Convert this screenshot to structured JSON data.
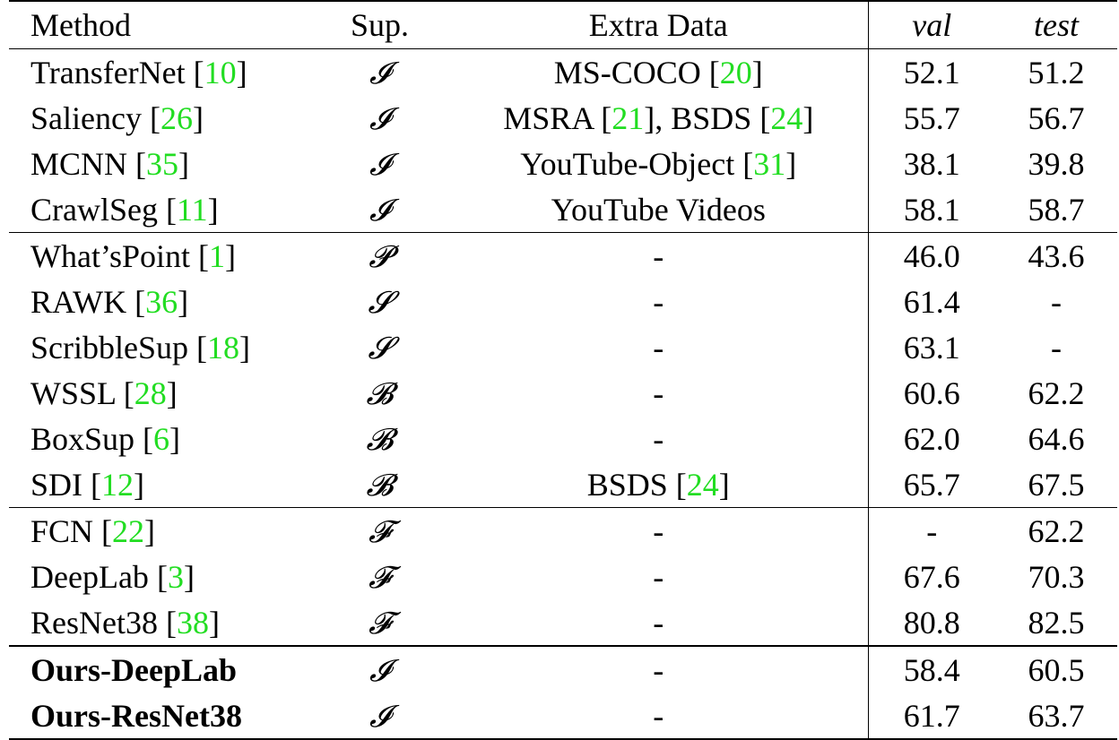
{
  "header": {
    "method": "Method",
    "sup": "Sup.",
    "extra": "Extra Data",
    "val": "val",
    "test": "test"
  },
  "groups": [
    {
      "rows": [
        {
          "method": "TransferNet",
          "ref": "10",
          "sup": "𝓘",
          "extra": "MS-COCO",
          "extra_refs": [
            "20"
          ],
          "val": "52.1",
          "test": "51.2"
        },
        {
          "method": "Saliency",
          "ref": "26",
          "sup": "𝓘",
          "extra": "MSRA",
          "extra_refs": [
            "21",
            "24"
          ],
          "extra2": "BSDS",
          "val": "55.7",
          "test": "56.7"
        },
        {
          "method": "MCNN",
          "ref": "35",
          "sup": "𝓘",
          "extra": "YouTube-Object",
          "extra_refs": [
            "31"
          ],
          "val": "38.1",
          "test": "39.8"
        },
        {
          "method": "CrawlSeg",
          "ref": "11",
          "sup": "𝓘",
          "extra": "YouTube Videos",
          "extra_refs": [],
          "val": "58.1",
          "test": "58.7"
        }
      ]
    },
    {
      "rows": [
        {
          "method": "What’sPoint",
          "ref": "1",
          "sup": "𝓟",
          "extra": "-",
          "extra_refs": [],
          "val": "46.0",
          "test": "43.6"
        },
        {
          "method": "RAWK",
          "ref": "36",
          "sup": "𝓢",
          "extra": "-",
          "extra_refs": [],
          "val": "61.4",
          "test": "-"
        },
        {
          "method": "ScribbleSup",
          "ref": "18",
          "sup": "𝓢",
          "extra": "-",
          "extra_refs": [],
          "val": "63.1",
          "test": "-"
        },
        {
          "method": "WSSL",
          "ref": "28",
          "sup": "𝓑",
          "extra": "-",
          "extra_refs": [],
          "val": "60.6",
          "test": "62.2"
        },
        {
          "method": "BoxSup",
          "ref": "6",
          "sup": "𝓑",
          "extra": "-",
          "extra_refs": [],
          "val": "62.0",
          "test": "64.6"
        },
        {
          "method": "SDI",
          "ref": "12",
          "sup": "𝓑",
          "extra": "BSDS",
          "extra_refs": [
            "24"
          ],
          "val": "65.7",
          "test": "67.5"
        }
      ]
    },
    {
      "rows": [
        {
          "method": "FCN",
          "ref": "22",
          "sup": "𝓕",
          "extra": "-",
          "extra_refs": [],
          "val": "-",
          "test": "62.2"
        },
        {
          "method": "DeepLab",
          "ref": "3",
          "sup": "𝓕",
          "extra": "-",
          "extra_refs": [],
          "val": "67.6",
          "test": "70.3"
        },
        {
          "method": "ResNet38",
          "ref": "38",
          "sup": "𝓕",
          "extra": "-",
          "extra_refs": [],
          "val": "80.8",
          "test": "82.5"
        }
      ]
    },
    {
      "rows": [
        {
          "method": "Ours-DeepLab",
          "ref": "",
          "bold": true,
          "sup": "𝓘",
          "extra": "-",
          "extra_refs": [],
          "val": "58.4",
          "test": "60.5"
        },
        {
          "method": "Ours-ResNet38",
          "ref": "",
          "bold": true,
          "sup": "𝓘",
          "extra": "-",
          "extra_refs": [],
          "val": "61.7",
          "test": "63.7"
        }
      ]
    }
  ],
  "colors": {
    "reference_link": "#22dd22",
    "text": "#000000"
  }
}
